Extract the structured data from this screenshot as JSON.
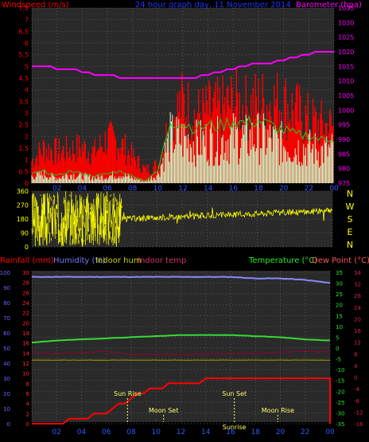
{
  "top_chart": {
    "title": "24 hour graph day, 11 November 2014",
    "left_label": "Windspeed (m/s)",
    "right_label": "Barometer (hpa)",
    "wind_ticks": [
      "0",
      "0.5",
      "1",
      "1.5",
      "2",
      "2.5",
      "3",
      "3.5",
      "4",
      "4.5",
      "5",
      "5.5",
      "6",
      "6.5",
      "7",
      "7.5"
    ],
    "baro_ticks": [
      "975",
      "980",
      "985",
      "990",
      "995",
      "1000",
      "1005",
      "1010",
      "1015",
      "1020",
      "1025",
      "1030",
      "1035"
    ],
    "hour_ticks": [
      "02",
      "04",
      "06",
      "08",
      "10",
      "12",
      "14",
      "16",
      "18",
      "20",
      "22",
      "00"
    ]
  },
  "direction_chart": {
    "left_ticks": [
      "0",
      "90",
      "180",
      "270",
      "360"
    ],
    "compass": [
      "N",
      "W",
      "S",
      "E",
      "N"
    ]
  },
  "bottom_chart": {
    "legend_rainfall": "Rainfall (mm)",
    "legend_humidity": "Humidity (%)",
    "legend_indoor_hum": "Indoor hum",
    "legend_indoor_temp": "Indoor temp",
    "legend_temperature": "Temperature (°C)",
    "legend_dewpoint": "Dew Point (°C)",
    "humidity_ticks": [
      "0",
      "10",
      "20",
      "30",
      "40",
      "50",
      "60",
      "70",
      "80",
      "90",
      "100"
    ],
    "rain_ticks": [
      "0",
      "2",
      "4",
      "6",
      "8",
      "10",
      "12",
      "14",
      "16",
      "18",
      "20",
      "22",
      "24",
      "26",
      "28",
      "30"
    ],
    "temp_ticks": [
      "-35",
      "-30",
      "-25",
      "-20",
      "-15",
      "-10",
      "-5",
      "0",
      "5",
      "10",
      "15",
      "20",
      "25",
      "30",
      "35"
    ],
    "indoor_ticks": [
      "-16",
      "-12",
      "-8",
      "-4",
      "0",
      "4",
      "8",
      "12",
      "16",
      "20",
      "24",
      "28",
      "32",
      "34"
    ],
    "events": [
      {
        "label": "Sun Rise",
        "hour": 7.7,
        "row": 0
      },
      {
        "label": "Sun Set",
        "hour": 16.3,
        "row": 0
      },
      {
        "label": "Moon Set",
        "hour": 10.6,
        "row": 1
      },
      {
        "label": "Moon Rise",
        "hour": 19.8,
        "row": 1
      },
      {
        "label": "Sunrise",
        "hour": 16.3,
        "row": 2
      }
    ]
  },
  "chart_data": [
    {
      "type": "line",
      "title": "24 hour graph day, 11 November 2014",
      "xlabel": "",
      "ylabel": "Windspeed (m/s)",
      "ylim": [
        0,
        7.5
      ],
      "x": [
        "00",
        "01",
        "02",
        "03",
        "04",
        "05",
        "06",
        "07",
        "08",
        "09",
        "10",
        "11",
        "12",
        "13",
        "14",
        "15",
        "16",
        "17",
        "18",
        "19",
        "20",
        "21",
        "22",
        "23",
        "24"
      ],
      "series": [
        {
          "name": "Windspeed (m/s)",
          "color": "#ff0000",
          "values": [
            1.0,
            1.6,
            1.4,
            1.5,
            1.6,
            1.4,
            2.0,
            1.8,
            1.2,
            0.6,
            0.8,
            2.8,
            3.6,
            3.0,
            3.2,
            3.3,
            3.6,
            3.4,
            3.6,
            3.6,
            3.6,
            3.2,
            2.8,
            2.6,
            2.5
          ]
        },
        {
          "name": "Windspeed avg",
          "color": "#ccffcc",
          "values": [
            0.4,
            0.5,
            0.3,
            0.5,
            0.4,
            0.3,
            0.4,
            0.5,
            0.3,
            0.1,
            0.5,
            2.6,
            2.5,
            2.3,
            2.4,
            2.4,
            2.6,
            2.5,
            2.6,
            2.4,
            2.2,
            2.0,
            2.0,
            1.8,
            1.9
          ]
        },
        {
          "name": "Barometer (hpa)",
          "color": "#ff00ff",
          "values": [
            1015,
            1015,
            1014,
            1014,
            1013,
            1012,
            1012,
            1011,
            1011,
            1011,
            1011,
            1011,
            1011,
            1011,
            1012,
            1013,
            1014,
            1015,
            1016,
            1016,
            1017,
            1018,
            1019,
            1020,
            1020
          ]
        }
      ],
      "ylim_right": [
        975,
        1035
      ]
    },
    {
      "type": "scatter",
      "ylabel": "Wind direction",
      "ylim": [
        0,
        360
      ],
      "x": [
        "00",
        "02",
        "04",
        "06",
        "07",
        "08",
        "10",
        "12",
        "14",
        "16",
        "18",
        "20",
        "22",
        "24"
      ],
      "series": [
        {
          "name": "Wind direction",
          "color": "#ffff00",
          "values": [
            180,
            200,
            150,
            220,
            180,
            180,
            190,
            195,
            200,
            205,
            210,
            215,
            225,
            240
          ]
        }
      ]
    },
    {
      "type": "line",
      "xlabel": "",
      "ylabel": "Humidity (%)",
      "ylim": [
        0,
        100
      ],
      "x": [
        "00",
        "02",
        "04",
        "06",
        "08",
        "10",
        "12",
        "14",
        "16",
        "18",
        "20",
        "22",
        "24"
      ],
      "series": [
        {
          "name": "Humidity (%)",
          "color": "#8888ff",
          "values": [
            97,
            97,
            97,
            97,
            97,
            97,
            97,
            97,
            97,
            96,
            96,
            95,
            93
          ]
        },
        {
          "name": "Temperature (°C)",
          "color": "#33dd33",
          "values": [
            2.5,
            3.5,
            4,
            4.5,
            5,
            5.5,
            6,
            6,
            6,
            5.5,
            5,
            4,
            3.5
          ]
        },
        {
          "name": "Dew Point (°C)",
          "color": "#990033",
          "values": [
            -2,
            -2.5,
            -2,
            -1.5,
            -3,
            -3,
            -3,
            -3,
            -2.5,
            -2.5,
            -2,
            -1.5,
            -2
          ]
        },
        {
          "name": "Rainfall (mm)",
          "color": "#ff0000",
          "values": [
            0,
            0,
            1,
            2,
            5,
            7,
            8,
            8.5,
            9,
            9,
            9,
            9,
            9
          ]
        },
        {
          "name": "Indoor hum",
          "color": "#999900",
          "values": [
            42,
            42,
            42,
            42,
            42,
            42,
            42,
            42,
            42,
            42,
            42,
            42,
            42
          ]
        }
      ],
      "ylim_right": [
        -35,
        35
      ]
    }
  ],
  "colors": {
    "wind": "#ff0000",
    "wind_avg": "#ccffcc",
    "baro": "#ff00ff",
    "direction": "#ffff00",
    "humidity": "#8888ff",
    "temp": "#33dd33",
    "dew": "#990033",
    "rain": "#ff0000",
    "indoor_hum": "#999900"
  }
}
